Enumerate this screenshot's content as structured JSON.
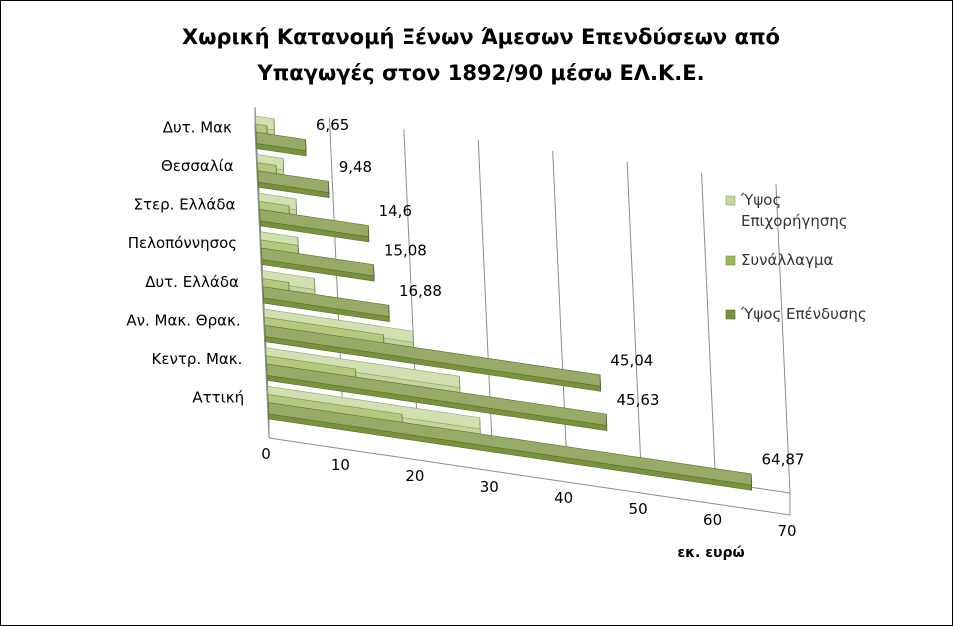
{
  "chart_data": {
    "type": "bar",
    "orientation": "horizontal",
    "title_lines": [
      "Χωρική Κατανομή Ξένων Άμεσων Επενδύσεων από",
      "Υπαγωγές στον 1892/90 μέσω ΕΛ.Κ.Ε."
    ],
    "xlabel": "εκ. ευρώ",
    "ylabel": "",
    "xlim": [
      0,
      70
    ],
    "x_ticks": [
      "0",
      "10",
      "20",
      "30",
      "40",
      "50",
      "60",
      "70"
    ],
    "categories": [
      "Αττική",
      "Κεντρ. Μακ.",
      "Αν. Μακ. Θρακ.",
      "Δυτ. Ελλάδα",
      "Πελοπόννησος",
      "Στερ. Ελλάδα",
      "Θεσσαλία",
      "Δυτ. Μακ"
    ],
    "series": [
      {
        "name": "Ύψος Επιχορήγησης",
        "color": "#c4d79b",
        "values": [
          28.5,
          26,
          20,
          7,
          5,
          5,
          3.5,
          2.5
        ]
      },
      {
        "name": "Συνάλλαγμα",
        "color": "#9bbb59",
        "values": [
          18,
          12,
          16,
          3.5,
          5,
          4,
          2.5,
          1.5
        ]
      },
      {
        "name": "Ύψος Επένδυσης",
        "color": "#77933c",
        "values": [
          64.87,
          45.63,
          45.04,
          16.88,
          15.08,
          14.6,
          9.48,
          6.65
        ]
      }
    ],
    "data_labels": [
      "64,87",
      "45,63",
      "45,04",
      "16,88",
      "15,08",
      "14,6",
      "9,48",
      "6,65"
    ],
    "legend_position": "right",
    "grid": true
  }
}
